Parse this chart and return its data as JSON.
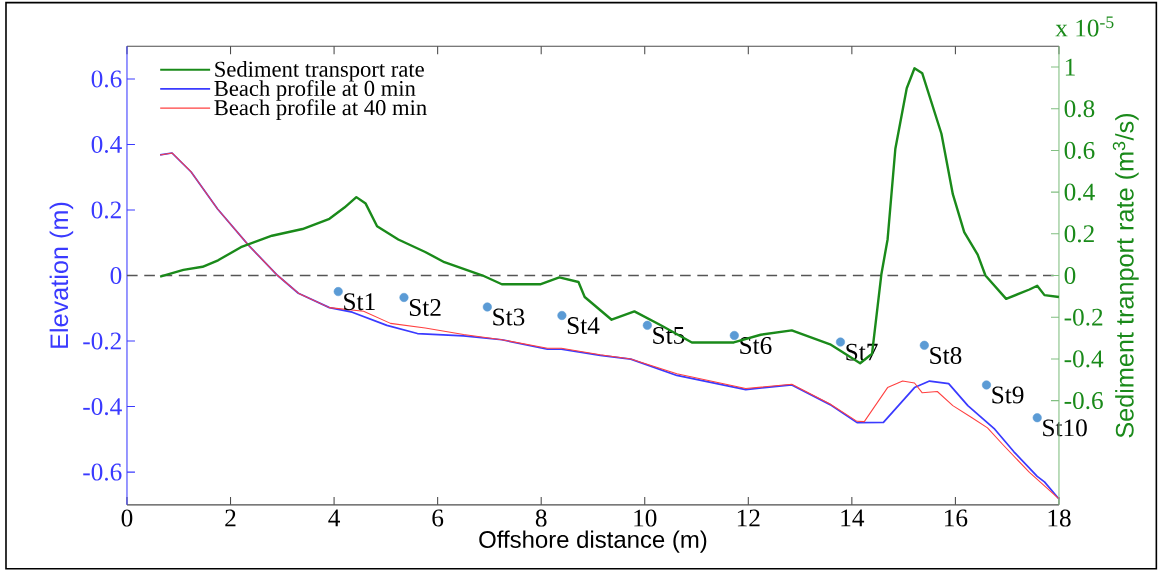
{
  "chart_data": {
    "type": "line",
    "xlabel": "Offshore distance (m)",
    "ylabel": "Elevation (m)",
    "y2label": "Sediment tranport rate (m$^{3}$/s)",
    "xlim": [
      0,
      18
    ],
    "ylim": [
      -0.7,
      0.7
    ],
    "y2lim": [
      -1.1,
      1.1
    ],
    "xticks": [
      0,
      2,
      4,
      6,
      8,
      10,
      12,
      14,
      16,
      18
    ],
    "yticks": [
      -0.6,
      -0.4,
      -0.2,
      0,
      0.2,
      0.4,
      0.6
    ],
    "y2ticks": [
      -0.6,
      -0.4,
      -0.2,
      0,
      0.2,
      0.4,
      0.6,
      0.8,
      1
    ],
    "legend": "top left",
    "grid": false,
    "ref_lines": [
      {
        "axis": "y",
        "value": 0,
        "color": "#555555",
        "line_style": "dashed"
      }
    ],
    "series": [
      {
        "name": "Sediment transport rate",
        "axis": "y2",
        "color": "#1a8a1a",
        "marker": "none",
        "x": [
          0.64,
          1.09,
          1.46,
          1.76,
          2.2,
          2.8,
          3.39,
          3.91,
          4.2,
          4.43,
          4.61,
          4.83,
          5.24,
          5.76,
          6.13,
          6.87,
          7.24,
          7.98,
          8.35,
          8.72,
          8.84,
          9.36,
          9.8,
          10.32,
          10.91,
          11.72,
          12.24,
          12.84,
          13.58,
          14.16,
          14.39,
          14.57,
          14.69,
          14.84,
          15.06,
          15.21,
          15.36,
          15.73,
          15.95,
          16.17,
          16.43,
          16.58,
          16.98,
          17.43,
          17.58,
          17.72,
          18.0
        ],
        "values": [
          -0.005,
          0.027,
          0.042,
          0.073,
          0.136,
          0.191,
          0.223,
          0.272,
          0.326,
          0.376,
          0.345,
          0.236,
          0.173,
          0.113,
          0.064,
          0,
          -0.042,
          -0.042,
          -0.009,
          -0.031,
          -0.103,
          -0.212,
          -0.172,
          -0.24,
          -0.321,
          -0.321,
          -0.284,
          -0.263,
          -0.33,
          -0.421,
          -0.375,
          0.006,
          0.173,
          0.608,
          0.898,
          0.994,
          0.97,
          0.68,
          0.39,
          0.208,
          0.1,
          0,
          -0.112,
          -0.067,
          -0.049,
          -0.094,
          -0.103
        ]
      },
      {
        "name": "Beach profile at 0 min",
        "color": "#3a3aff",
        "marker": "none",
        "x": [
          0.64,
          0.87,
          1.24,
          1.75,
          2.35,
          2.91,
          3.31,
          3.91,
          4.35,
          5.02,
          5.61,
          6.5,
          7.24,
          8.12,
          8.39,
          9.14,
          9.73,
          10.62,
          11.95,
          12.84,
          13.58,
          14.1,
          14.61,
          15.21,
          15.5,
          15.87,
          16.24,
          16.76,
          17.13,
          17.58,
          17.72,
          18.0
        ],
        "values": [
          0.368,
          0.374,
          0.316,
          0.203,
          0.092,
          0,
          -0.054,
          -0.098,
          -0.112,
          -0.152,
          -0.177,
          -0.184,
          -0.196,
          -0.225,
          -0.225,
          -0.244,
          -0.255,
          -0.305,
          -0.348,
          -0.334,
          -0.394,
          -0.449,
          -0.448,
          -0.342,
          -0.322,
          -0.33,
          -0.397,
          -0.469,
          -0.538,
          -0.613,
          -0.63,
          -0.682
        ]
      },
      {
        "name": "Beach profile at 40 min",
        "color": "#ff4040",
        "marker": "none",
        "x": [
          0.64,
          0.87,
          1.24,
          1.75,
          2.35,
          2.91,
          3.31,
          3.91,
          4.57,
          5.09,
          5.76,
          6.5,
          7.24,
          8.12,
          8.39,
          9.14,
          9.73,
          10.62,
          11.95,
          12.84,
          13.58,
          14.1,
          14.24,
          14.69,
          14.98,
          15.21,
          15.36,
          15.65,
          15.95,
          16.32,
          16.62,
          16.91,
          17.43,
          18.0
        ],
        "values": [
          0.368,
          0.374,
          0.316,
          0.203,
          0.092,
          0,
          -0.054,
          -0.098,
          -0.109,
          -0.146,
          -0.16,
          -0.18,
          -0.196,
          -0.222,
          -0.222,
          -0.242,
          -0.255,
          -0.3,
          -0.345,
          -0.332,
          -0.392,
          -0.445,
          -0.446,
          -0.342,
          -0.322,
          -0.328,
          -0.358,
          -0.354,
          -0.397,
          -0.434,
          -0.465,
          -0.515,
          -0.601,
          -0.682
        ]
      },
      {
        "type": "scatter",
        "color": "#5b9bd5",
        "marker": "circle",
        "x": [
          4.08,
          5.35,
          6.96,
          8.4,
          10.05,
          11.73,
          13.78,
          15.4,
          16.6,
          17.58
        ],
        "values": [
          -0.049,
          -0.067,
          -0.096,
          -0.122,
          -0.152,
          -0.183,
          -0.203,
          -0.213,
          -0.334,
          -0.434
        ]
      }
    ],
    "annotations": [
      {
        "text": "St1",
        "x": 4.08,
        "y": -0.049
      },
      {
        "text": "St2",
        "x": 5.35,
        "y": -0.067
      },
      {
        "text": "St3",
        "x": 6.96,
        "y": -0.096
      },
      {
        "text": "St4",
        "x": 8.4,
        "y": -0.122
      },
      {
        "text": "St5",
        "x": 10.05,
        "y": -0.152
      },
      {
        "text": "St6",
        "x": 11.73,
        "y": -0.183
      },
      {
        "text": "St7",
        "x": 13.78,
        "y": -0.203
      },
      {
        "text": "St8",
        "x": 15.4,
        "y": -0.213
      },
      {
        "text": "St9",
        "x": 16.6,
        "y": -0.334
      },
      {
        "text": "St10",
        "x": 17.58,
        "y": -0.434
      },
      "x 10$^{-5}$"
    ]
  }
}
